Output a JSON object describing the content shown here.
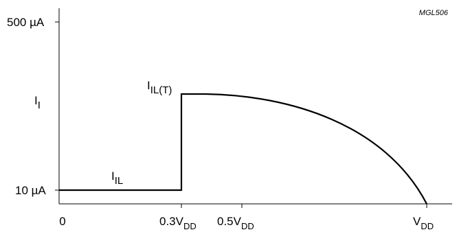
{
  "chart_data": {
    "type": "line",
    "code": "MGL506",
    "ylabel": {
      "main": "I",
      "sub": "I"
    },
    "y_ticks": [
      {
        "value": 500,
        "label": "500 µA"
      },
      {
        "value": 10,
        "label": "10 µA"
      }
    ],
    "x_ticks": [
      {
        "value": 0,
        "main": "0",
        "sub": ""
      },
      {
        "value": 0.3,
        "main": "0.3V",
        "sub": "DD"
      },
      {
        "value": 0.5,
        "main": "0.5V",
        "sub": "DD"
      },
      {
        "value": 1.0,
        "main": "V",
        "sub": "DD"
      }
    ],
    "annotations": [
      {
        "id": "i-il",
        "main": "I",
        "sub": "IL"
      },
      {
        "id": "i-il-t",
        "main": "I",
        "sub": "IL(T)"
      }
    ],
    "colors": {
      "line": "#000000",
      "axis": "#000000"
    }
  }
}
